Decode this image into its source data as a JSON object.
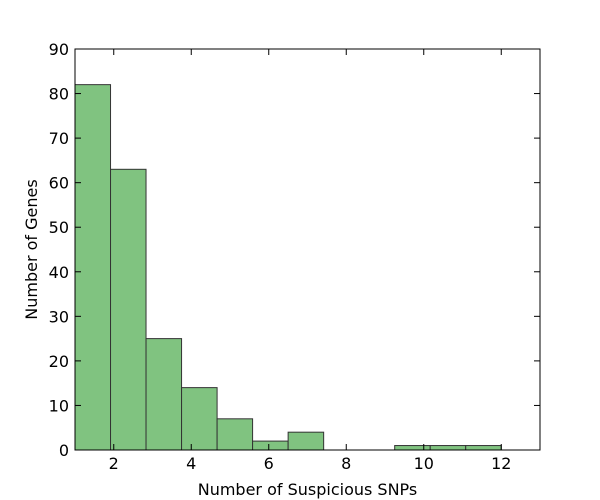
{
  "chart_data": {
    "type": "bar",
    "title": "",
    "xlabel": "Number of Suspicious SNPs",
    "ylabel": "Number of Genes",
    "xlim": [
      1,
      13
    ],
    "ylim": [
      0,
      90
    ],
    "x_ticks": [
      2,
      4,
      6,
      8,
      10,
      12
    ],
    "y_ticks": [
      0,
      10,
      20,
      30,
      40,
      50,
      60,
      70,
      80,
      90
    ],
    "grid": false,
    "bar_color": "#80c380",
    "bar_edge_color": "#333333",
    "bins": [
      {
        "start": 1.0,
        "end": 1.917,
        "value": 82
      },
      {
        "start": 1.917,
        "end": 2.833,
        "value": 63
      },
      {
        "start": 2.833,
        "end": 3.75,
        "value": 25
      },
      {
        "start": 3.75,
        "end": 4.667,
        "value": 14
      },
      {
        "start": 4.667,
        "end": 5.583,
        "value": 7
      },
      {
        "start": 5.583,
        "end": 6.5,
        "value": 2
      },
      {
        "start": 6.5,
        "end": 7.417,
        "value": 4
      },
      {
        "start": 7.417,
        "end": 8.333,
        "value": 0
      },
      {
        "start": 8.333,
        "end": 9.25,
        "value": 0
      },
      {
        "start": 9.25,
        "end": 10.167,
        "value": 1
      },
      {
        "start": 10.167,
        "end": 11.083,
        "value": 1
      },
      {
        "start": 11.083,
        "end": 12.0,
        "value": 1
      }
    ]
  }
}
